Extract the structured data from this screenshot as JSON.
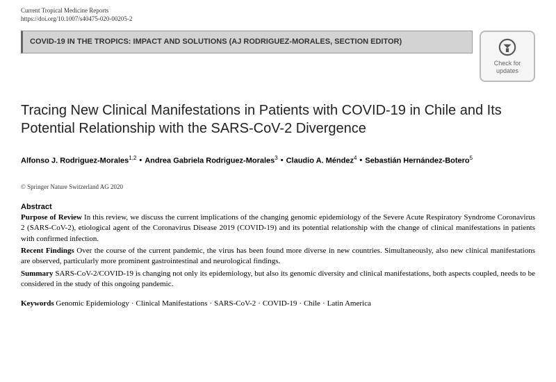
{
  "header": {
    "journal_name": "Current Tropical Medicine Reports",
    "doi": "https://doi.org/10.1007/s40475-020-00205-2",
    "section_banner": "COVID-19 IN THE TROPICS: IMPACT AND SOLUTIONS (AJ RODRIGUEZ-MORALES, SECTION EDITOR)",
    "check_updates_label": "Check for updates"
  },
  "title": "Tracing New Clinical Manifestations in Patients with COVID-19 in Chile and Its Potential Relationship with the SARS-CoV-2 Divergence",
  "authors": [
    {
      "name": "Alfonso J. Rodriguez-Morales",
      "affil": "1,2"
    },
    {
      "name": "Andrea Gabriela Rodriguez-Morales",
      "affil": "3"
    },
    {
      "name": "Claudio A. Méndez",
      "affil": "4"
    },
    {
      "name": "Sebastián Hernández-Botero",
      "affil": "5"
    }
  ],
  "copyright": "© Springer Nature Switzerland AG 2020",
  "abstract": {
    "header": "Abstract",
    "purpose": {
      "label": "Purpose of Review",
      "text": "In this review, we discuss the current implications of the changing genomic epidemiology of the Severe Acute Respiratory Syndrome Coronavirus 2 (SARS-CoV-2), etiological agent of the Coronavirus Disease 2019 (COVID-19) and its potential relationship with the change of clinical manifestations in patients with confirmed infection."
    },
    "findings": {
      "label": "Recent Findings",
      "text": "Over the course of the current pandemic, the virus has been found more diverse in new countries. Simultaneously, also new clinical manifestations are observed, particularly more prominent gastrointestinal and neurological findings."
    },
    "summary": {
      "label": "Summary",
      "text": "SARS-CoV-2/COVID-19 is changing not only its epidemiology, but also its genomic diversity and clinical manifestations, both aspects coupled, needs to be considered in the study of this ongoing pandemic."
    }
  },
  "keywords": {
    "label": "Keywords",
    "items": [
      "Genomic Epidemiology",
      "Clinical Manifestations",
      "SARS-CoV-2",
      "COVID-19",
      "Chile",
      "Latin America"
    ]
  },
  "styles": {
    "section_header_bg": "#d3d3d3",
    "section_header_border": "#999999",
    "title_color": "#222222",
    "text_color": "#000000",
    "check_updates_border": "#bbbbbb",
    "check_updates_bg": "#f5f5f5",
    "icon_color": "#555555"
  }
}
